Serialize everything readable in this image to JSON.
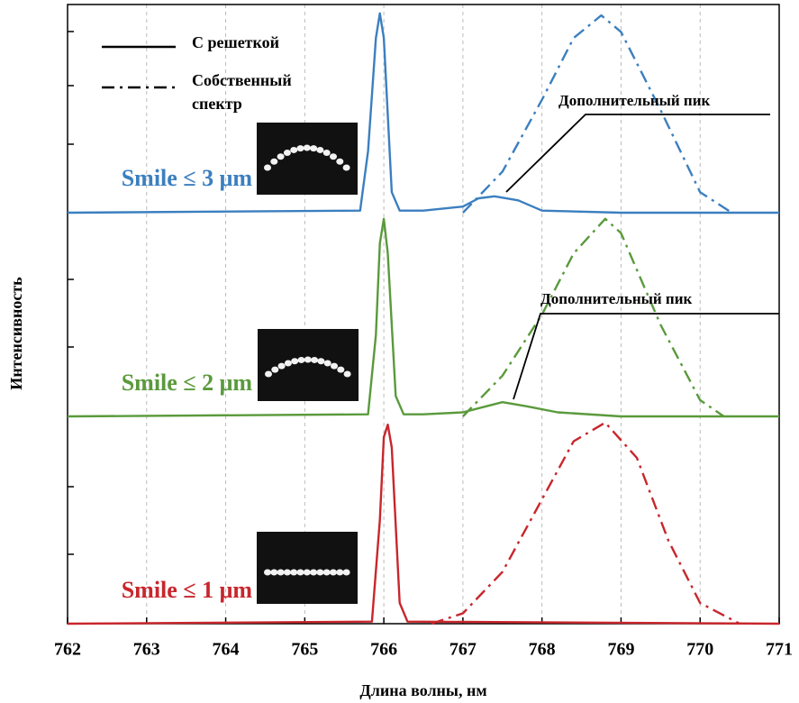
{
  "chart_data": [
    {
      "type": "line",
      "label": "Smile ≤ 3 μm",
      "color": "#3b7fc0",
      "annotation": "Дополнительный пик",
      "xlim": [
        762,
        771
      ],
      "ylim": [
        0,
        1
      ],
      "legend": [
        {
          "label": "С решеткой",
          "style": "solid"
        },
        {
          "label": "Собственный спектр",
          "style": "dashdot"
        }
      ],
      "series": [
        {
          "style": "solid",
          "x": [
            762,
            765.7,
            765.8,
            765.9,
            765.95,
            766.0,
            766.1,
            766.2,
            766.5,
            767.0,
            767.2,
            767.4,
            767.7,
            768.0,
            769.0,
            771
          ],
          "values": [
            0,
            0.01,
            0.3,
            0.85,
            0.97,
            0.85,
            0.1,
            0.01,
            0.01,
            0.03,
            0.07,
            0.08,
            0.06,
            0.01,
            0,
            0
          ]
        },
        {
          "style": "dashdot",
          "x": [
            767.0,
            767.5,
            768.0,
            768.4,
            768.75,
            769.0,
            769.5,
            770.0,
            770.4
          ],
          "values": [
            0,
            0.2,
            0.55,
            0.85,
            0.96,
            0.88,
            0.5,
            0.1,
            0
          ]
        }
      ]
    },
    {
      "type": "line",
      "label": "Smile ≤ 2 μm",
      "color": "#5a9a3c",
      "annotation": "Дополнительный пик",
      "xlim": [
        762,
        771
      ],
      "ylim": [
        0,
        1
      ],
      "series": [
        {
          "style": "solid",
          "x": [
            762,
            765.8,
            765.9,
            765.95,
            766.0,
            766.05,
            766.15,
            766.25,
            766.5,
            767.0,
            767.3,
            767.5,
            767.8,
            768.2,
            769.0,
            771
          ],
          "values": [
            0,
            0.01,
            0.4,
            0.85,
            0.97,
            0.8,
            0.1,
            0.01,
            0.01,
            0.02,
            0.05,
            0.07,
            0.05,
            0.02,
            0,
            0
          ]
        },
        {
          "style": "dashdot",
          "x": [
            767.0,
            767.5,
            768.0,
            768.4,
            768.8,
            769.0,
            769.5,
            770.0,
            770.3
          ],
          "values": [
            0,
            0.2,
            0.5,
            0.8,
            0.97,
            0.9,
            0.45,
            0.08,
            0
          ]
        }
      ]
    },
    {
      "type": "line",
      "label": "Smile ≤ 1 μm",
      "color": "#c8262c",
      "annotation": null,
      "xlim": [
        762,
        771
      ],
      "ylim": [
        0,
        1
      ],
      "xticks": [
        762,
        763,
        764,
        765,
        766,
        767,
        768,
        769,
        770,
        771
      ],
      "grid": true,
      "xlabel": "Длина волны, нм",
      "ylabel": "Интенсивность",
      "series": [
        {
          "style": "solid",
          "x": [
            762,
            765.85,
            765.95,
            766.0,
            766.05,
            766.1,
            766.2,
            766.3,
            771
          ],
          "values": [
            0,
            0.01,
            0.5,
            0.9,
            0.96,
            0.85,
            0.1,
            0.01,
            0
          ]
        },
        {
          "style": "dashdot",
          "x": [
            766.6,
            767.0,
            767.5,
            768.0,
            768.4,
            768.8,
            769.2,
            769.6,
            770.0,
            770.5
          ],
          "values": [
            0,
            0.05,
            0.25,
            0.6,
            0.88,
            0.97,
            0.8,
            0.4,
            0.1,
            0
          ]
        }
      ]
    }
  ]
}
